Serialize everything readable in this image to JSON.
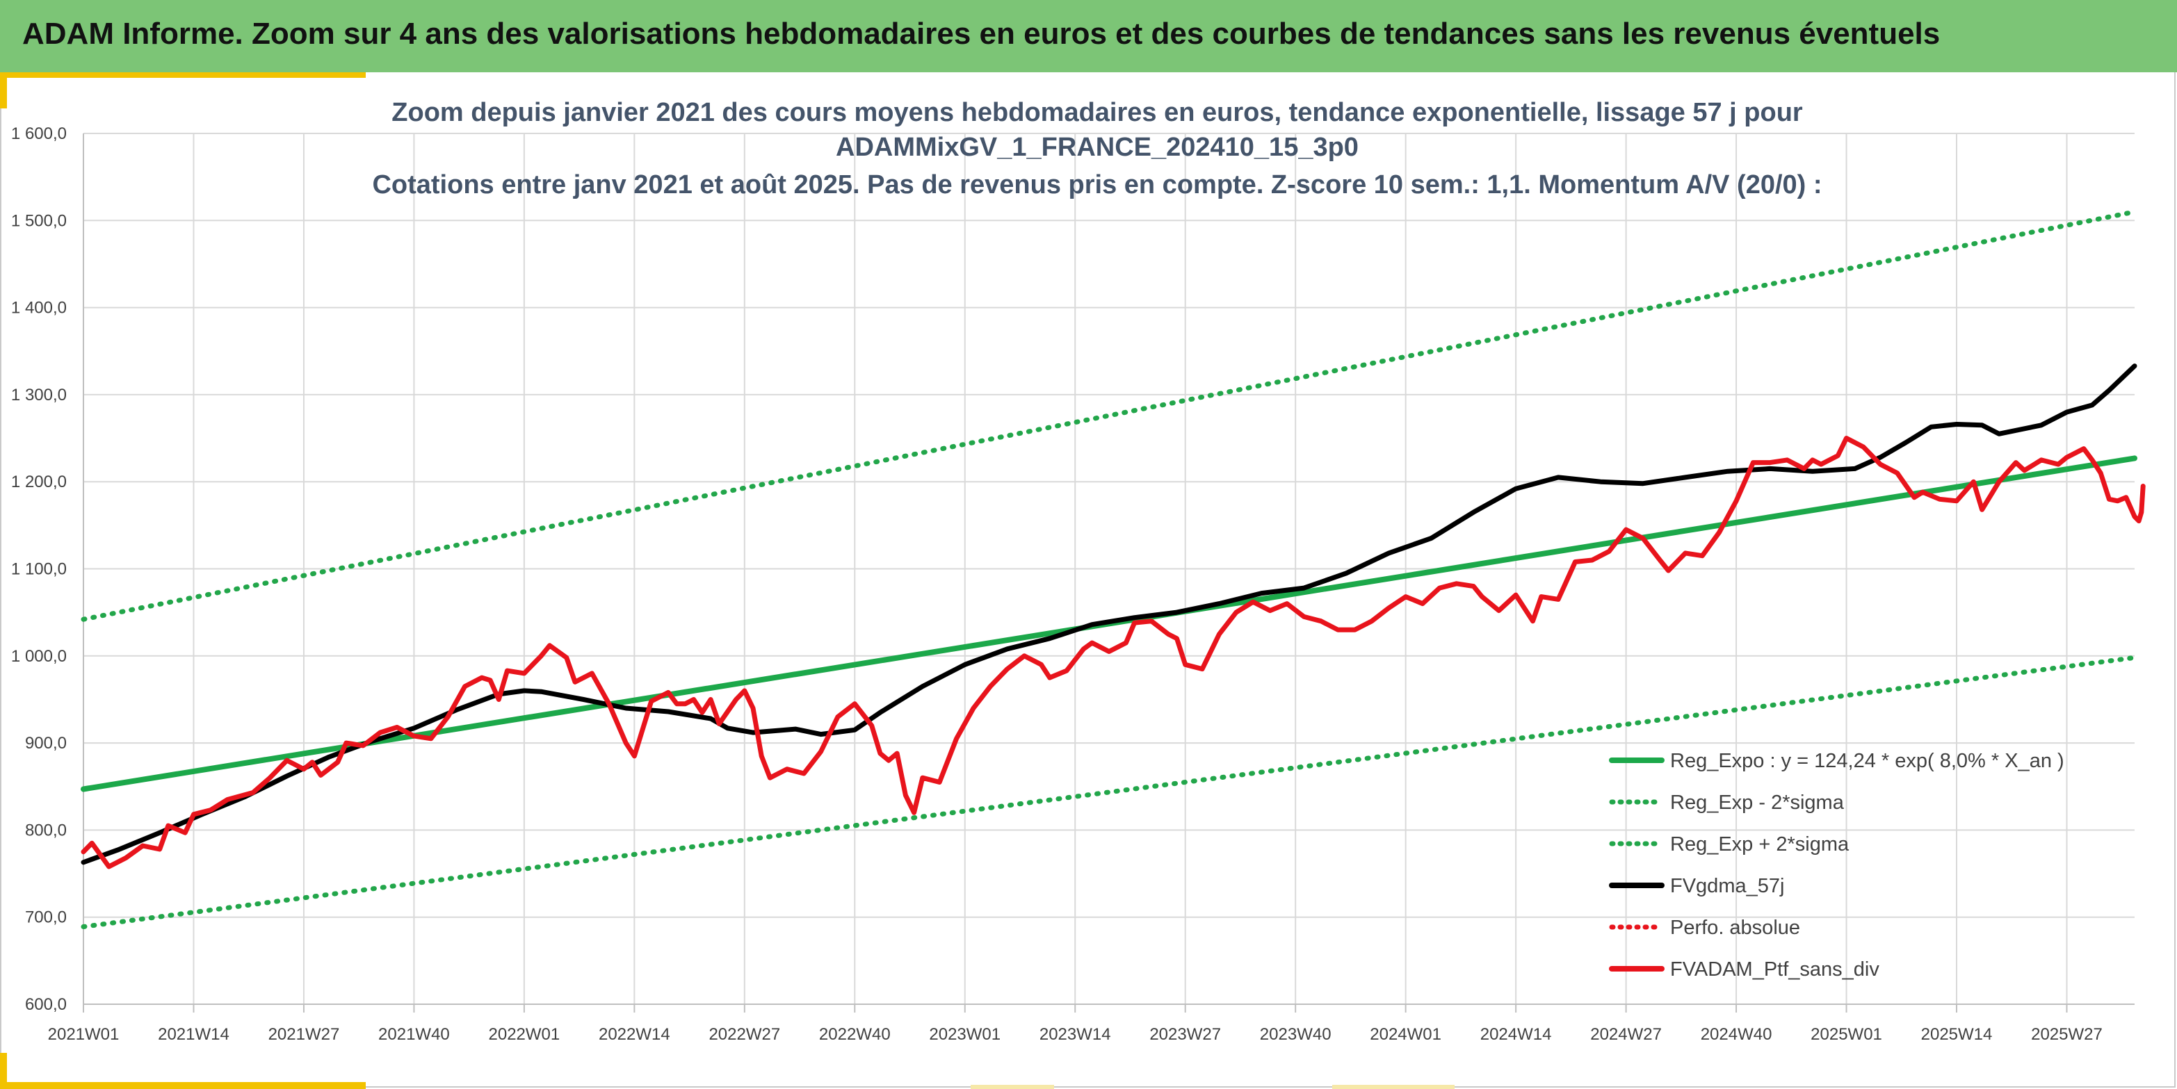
{
  "header": {
    "title": "ADAM Informe. Zoom sur 4 ans des valorisations hebdomadaires en euros et des courbes de tendances sans les revenus éventuels"
  },
  "colors": {
    "banner": "#7cc576",
    "accent": "#f2c200",
    "trend": "#1ca84a",
    "dotted": "#22a64a",
    "mma": "#000000",
    "portfolio": "#e8141c",
    "grid": "#d9d9d9"
  },
  "chart_data": {
    "type": "line",
    "title_lines": [
      "Zoom depuis janvier 2021 des cours moyens hebdomadaires en euros, tendance exponentielle, lissage 57 j pour",
      "ADAMMixGV_1_FRANCE_202410_15_3p0",
      "Cotations entre janv 2021 et août 2025. Pas de revenus pris en compte. Z-score 10 sem.: 1,1. Momentum A/V (20/0) :"
    ],
    "ylim": [
      600,
      1600
    ],
    "y_ticks": [
      600,
      700,
      800,
      900,
      1000,
      1100,
      1200,
      1300,
      1400,
      1500,
      1600
    ],
    "y_tick_labels": [
      "600,0",
      "700,0",
      "800,0",
      "900,0",
      "1 000,0",
      "1 100,0",
      "1 200,0",
      "1 300,0",
      "1 400,0",
      "1 500,0",
      "1 600,0"
    ],
    "x_weeks": 243,
    "x_ticks": [
      {
        "week": 1,
        "label": "2021W01"
      },
      {
        "week": 14,
        "label": "2021W14"
      },
      {
        "week": 27,
        "label": "2021W27"
      },
      {
        "week": 40,
        "label": "2021W40"
      },
      {
        "week": 53,
        "label": "2022W01"
      },
      {
        "week": 66,
        "label": "2022W14"
      },
      {
        "week": 79,
        "label": "2022W27"
      },
      {
        "week": 92,
        "label": "2022W40"
      },
      {
        "week": 105,
        "label": "2023W01"
      },
      {
        "week": 118,
        "label": "2023W14"
      },
      {
        "week": 131,
        "label": "2023W27"
      },
      {
        "week": 144,
        "label": "2023W40"
      },
      {
        "week": 157,
        "label": "2024W01"
      },
      {
        "week": 170,
        "label": "2024W14"
      },
      {
        "week": 183,
        "label": "2024W27"
      },
      {
        "week": 196,
        "label": "2024W40"
      },
      {
        "week": 209,
        "label": "2025W01"
      },
      {
        "week": 222,
        "label": "2025W14"
      },
      {
        "week": 235,
        "label": "2025W27"
      }
    ],
    "grid": true,
    "legend_position": "bottom-right",
    "series": [
      {
        "name": "Reg_Expo : y = 124,24 * exp( 8,0% *  X_an )",
        "style": "solid",
        "color": "#1ca84a",
        "points": [
          [
            1,
            847
          ],
          [
            243,
            1227
          ]
        ]
      },
      {
        "name": "Reg_Exp - 2*sigma",
        "style": "dotted",
        "color": "#22a64a",
        "points": [
          [
            1,
            689
          ],
          [
            243,
            998
          ]
        ]
      },
      {
        "name": "Reg_Exp + 2*sigma",
        "style": "dotted",
        "color": "#22a64a",
        "points": [
          [
            1,
            1042
          ],
          [
            243,
            1510
          ]
        ]
      },
      {
        "name": "FVgdma_57j",
        "style": "solid",
        "color": "#000000",
        "points": [
          [
            1,
            763
          ],
          [
            5,
            777
          ],
          [
            10,
            797
          ],
          [
            15,
            818
          ],
          [
            20,
            838
          ],
          [
            25,
            862
          ],
          [
            30,
            884
          ],
          [
            35,
            902
          ],
          [
            40,
            917
          ],
          [
            45,
            938
          ],
          [
            50,
            956
          ],
          [
            53,
            960
          ],
          [
            55,
            959
          ],
          [
            60,
            950
          ],
          [
            65,
            940
          ],
          [
            70,
            936
          ],
          [
            75,
            928
          ],
          [
            77,
            917
          ],
          [
            80,
            912
          ],
          [
            85,
            916
          ],
          [
            88,
            910
          ],
          [
            92,
            915
          ],
          [
            95,
            935
          ],
          [
            100,
            965
          ],
          [
            105,
            990
          ],
          [
            110,
            1008
          ],
          [
            115,
            1020
          ],
          [
            120,
            1036
          ],
          [
            125,
            1044
          ],
          [
            130,
            1050
          ],
          [
            135,
            1060
          ],
          [
            140,
            1072
          ],
          [
            145,
            1078
          ],
          [
            150,
            1095
          ],
          [
            155,
            1118
          ],
          [
            160,
            1135
          ],
          [
            165,
            1165
          ],
          [
            170,
            1192
          ],
          [
            175,
            1205
          ],
          [
            180,
            1200
          ],
          [
            185,
            1198
          ],
          [
            190,
            1205
          ],
          [
            195,
            1212
          ],
          [
            200,
            1215
          ],
          [
            205,
            1212
          ],
          [
            210,
            1215
          ],
          [
            213,
            1228
          ],
          [
            216,
            1245
          ],
          [
            219,
            1263
          ],
          [
            222,
            1266
          ],
          [
            225,
            1265
          ],
          [
            227,
            1255
          ],
          [
            232,
            1265
          ],
          [
            235,
            1280
          ],
          [
            238,
            1288
          ],
          [
            240,
            1305
          ],
          [
            243,
            1333
          ]
        ]
      },
      {
        "name": "Perfo. absolue",
        "style": "dotted",
        "color": "#e8141c",
        "points": []
      },
      {
        "name": "FVADAM_Ptf_sans_div",
        "style": "solid",
        "color": "#e8141c",
        "points": [
          [
            1,
            775
          ],
          [
            2,
            785
          ],
          [
            4,
            758
          ],
          [
            6,
            768
          ],
          [
            8,
            782
          ],
          [
            10,
            778
          ],
          [
            11,
            805
          ],
          [
            13,
            797
          ],
          [
            14,
            818
          ],
          [
            16,
            823
          ],
          [
            18,
            835
          ],
          [
            21,
            843
          ],
          [
            23,
            860
          ],
          [
            25,
            880
          ],
          [
            27,
            870
          ],
          [
            28,
            878
          ],
          [
            29,
            863
          ],
          [
            31,
            878
          ],
          [
            32,
            900
          ],
          [
            34,
            897
          ],
          [
            36,
            912
          ],
          [
            38,
            918
          ],
          [
            40,
            908
          ],
          [
            42,
            905
          ],
          [
            44,
            930
          ],
          [
            46,
            965
          ],
          [
            48,
            975
          ],
          [
            49,
            972
          ],
          [
            50,
            950
          ],
          [
            51,
            983
          ],
          [
            53,
            980
          ],
          [
            55,
            1000
          ],
          [
            56,
            1012
          ],
          [
            58,
            998
          ],
          [
            59,
            970
          ],
          [
            61,
            980
          ],
          [
            63,
            945
          ],
          [
            65,
            900
          ],
          [
            66,
            885
          ],
          [
            68,
            948
          ],
          [
            70,
            958
          ],
          [
            71,
            945
          ],
          [
            72,
            945
          ],
          [
            73,
            950
          ],
          [
            74,
            935
          ],
          [
            75,
            950
          ],
          [
            76,
            922
          ],
          [
            78,
            950
          ],
          [
            79,
            960
          ],
          [
            80,
            940
          ],
          [
            81,
            885
          ],
          [
            82,
            860
          ],
          [
            84,
            870
          ],
          [
            86,
            865
          ],
          [
            88,
            890
          ],
          [
            90,
            930
          ],
          [
            92,
            945
          ],
          [
            94,
            920
          ],
          [
            95,
            888
          ],
          [
            96,
            880
          ],
          [
            97,
            888
          ],
          [
            98,
            840
          ],
          [
            99,
            820
          ],
          [
            100,
            860
          ],
          [
            102,
            855
          ],
          [
            104,
            905
          ],
          [
            106,
            940
          ],
          [
            108,
            965
          ],
          [
            110,
            985
          ],
          [
            112,
            1000
          ],
          [
            114,
            990
          ],
          [
            115,
            975
          ],
          [
            117,
            983
          ],
          [
            119,
            1008
          ],
          [
            120,
            1015
          ],
          [
            122,
            1005
          ],
          [
            124,
            1015
          ],
          [
            125,
            1038
          ],
          [
            127,
            1040
          ],
          [
            129,
            1025
          ],
          [
            130,
            1020
          ],
          [
            131,
            990
          ],
          [
            133,
            985
          ],
          [
            135,
            1025
          ],
          [
            137,
            1050
          ],
          [
            139,
            1062
          ],
          [
            141,
            1052
          ],
          [
            143,
            1060
          ],
          [
            145,
            1045
          ],
          [
            147,
            1040
          ],
          [
            149,
            1030
          ],
          [
            151,
            1030
          ],
          [
            153,
            1040
          ],
          [
            155,
            1055
          ],
          [
            157,
            1068
          ],
          [
            159,
            1060
          ],
          [
            161,
            1078
          ],
          [
            163,
            1083
          ],
          [
            165,
            1080
          ],
          [
            166,
            1068
          ],
          [
            168,
            1052
          ],
          [
            170,
            1070
          ],
          [
            172,
            1040
          ],
          [
            173,
            1068
          ],
          [
            175,
            1065
          ],
          [
            177,
            1108
          ],
          [
            179,
            1110
          ],
          [
            181,
            1120
          ],
          [
            183,
            1145
          ],
          [
            185,
            1135
          ],
          [
            187,
            1110
          ],
          [
            188,
            1098
          ],
          [
            190,
            1118
          ],
          [
            192,
            1115
          ],
          [
            194,
            1142
          ],
          [
            196,
            1178
          ],
          [
            198,
            1222
          ],
          [
            200,
            1222
          ],
          [
            202,
            1225
          ],
          [
            204,
            1215
          ],
          [
            205,
            1225
          ],
          [
            206,
            1220
          ],
          [
            208,
            1230
          ],
          [
            209,
            1250
          ],
          [
            211,
            1240
          ],
          [
            213,
            1220
          ],
          [
            215,
            1210
          ],
          [
            217,
            1182
          ],
          [
            218,
            1188
          ],
          [
            220,
            1180
          ],
          [
            222,
            1178
          ],
          [
            224,
            1200
          ],
          [
            225,
            1168
          ],
          [
            227,
            1200
          ],
          [
            229,
            1222
          ],
          [
            230,
            1213
          ],
          [
            232,
            1225
          ],
          [
            234,
            1220
          ],
          [
            235,
            1228
          ],
          [
            237,
            1238
          ],
          [
            238,
            1225
          ],
          [
            239,
            1210
          ],
          [
            240,
            1180
          ],
          [
            241,
            1178
          ],
          [
            242,
            1182
          ],
          [
            243,
            1160
          ],
          [
            243.5,
            1155
          ],
          [
            243.8,
            1165
          ],
          [
            244,
            1195
          ]
        ],
        "note_weeks": "x values above are in ISO week index (1 = 2021W01)"
      }
    ]
  }
}
